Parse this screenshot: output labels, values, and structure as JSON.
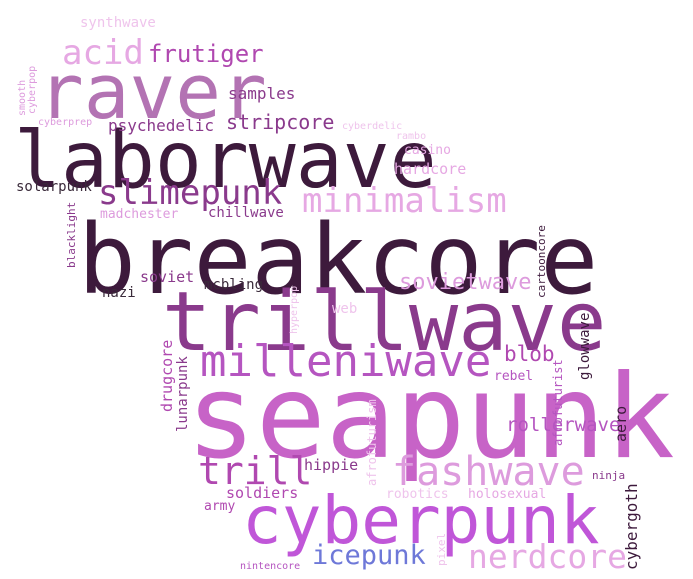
{
  "words": {
    "breakcore": "breakcore",
    "seapunk": "seapunk",
    "laborwave": "laborwave",
    "trillwave": "trillwave",
    "raver": "raver",
    "cyberpunk": "cyberpunk",
    "milleniwave": "milleniwave",
    "fashwave": "fashwave",
    "slimepunk": "slimepunk",
    "minimalism": "minimalism",
    "nerdcore": "nerdcore",
    "trill": "trill",
    "acid": "acid",
    "icepunk": "icepunk",
    "frutiger": "frutiger",
    "blob": "blob",
    "sovietwave": "sovietwave",
    "rollerwave": "rollerwave",
    "stripcore": "stripcore",
    "psychedelic": "psychedelic",
    "samples": "samples",
    "hippie": "hippie",
    "soldiers": "soldiers",
    "chillwave": "chillwave",
    "madchester": "madchester",
    "solarpunk": "solarpunk",
    "soviet": "soviet",
    "mcbling": "mcbling",
    "nazi": "nazi",
    "hardcore": "hardcore",
    "casino": "casino",
    "synthwave": "synthwave",
    "web": "web",
    "rebel": "rebel",
    "army": "army",
    "robotics": "robotics",
    "holosexual": "holosexual",
    "cybergoth": "cybergoth",
    "glowwave": "glowwave",
    "aero": "aero",
    "drugcore": "drugcore",
    "lunarpunk": "lunarpunk",
    "afrofuturism": "afrofuturism",
    "afrofuturist": "afrofuturist",
    "cartooncore": "cartooncore",
    "blacklight": "blacklight",
    "hyperpop": "hyperpop",
    "smooth": "smooth",
    "cyberpop": "cyberpop",
    "cyberprep": "cyberprep",
    "cyberdelic": "cyberdelic",
    "rambo": "rambo",
    "ninja": "ninja",
    "pixel": "pixel",
    "nintencore": "nintencore"
  },
  "colors": {
    "dark_plum": "#3d1a3c",
    "deep_purple": "#8a3a8c",
    "mid_purple": "#b048b0",
    "orchid": "#c763c7",
    "magenta": "#b555c0",
    "light_orchid": "#dd9bdd",
    "pale_pink": "#e6a8e3",
    "very_pale": "#efc4ec",
    "cornflower": "#6e78d8",
    "dark_text": "#3a2a3a"
  }
}
